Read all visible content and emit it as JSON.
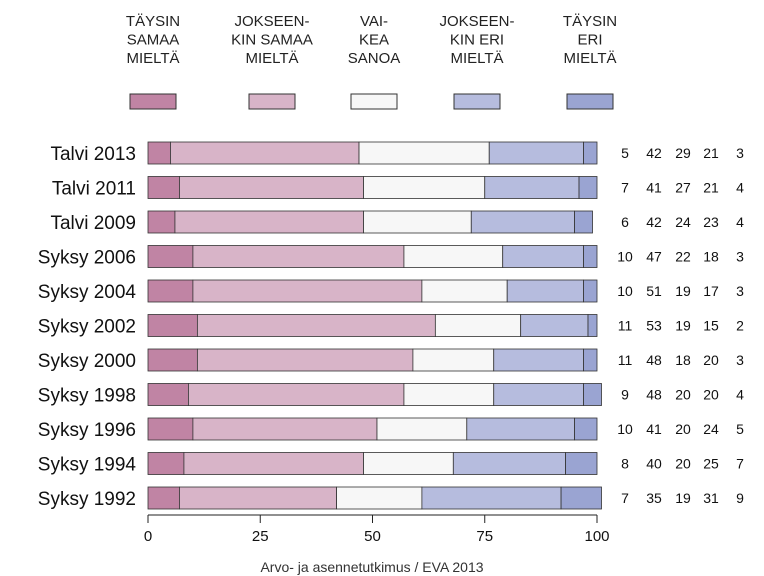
{
  "chart_data": {
    "type": "bar",
    "orientation": "horizontal",
    "stacked": true,
    "categories": [
      "Talvi 2013",
      "Talvi 2011",
      "Talvi 2009",
      "Syksy 2006",
      "Syksy 2004",
      "Syksy 2002",
      "Syksy 2000",
      "Syksy 1998",
      "Syksy 1996",
      "Syksy 1994",
      "Syksy 1992"
    ],
    "series": [
      {
        "name_lines": [
          "TÄYSIN",
          "SAMAA",
          "MIELTÄ"
        ],
        "color": "#c084a4",
        "values": [
          5,
          7,
          6,
          10,
          10,
          11,
          11,
          9,
          10,
          8,
          7
        ]
      },
      {
        "name_lines": [
          "JOKSEEN-",
          "KIN SAMAA",
          "MIELTÄ"
        ],
        "color": "#d8b4c8",
        "values": [
          42,
          41,
          42,
          47,
          51,
          53,
          48,
          48,
          41,
          40,
          35
        ]
      },
      {
        "name_lines": [
          "VAI-",
          "KEA",
          "SANOA"
        ],
        "color": "#f7f7f7",
        "values": [
          29,
          27,
          24,
          22,
          19,
          19,
          18,
          20,
          20,
          20,
          19
        ]
      },
      {
        "name_lines": [
          "JOKSEEN-",
          "KIN ERI",
          "MIELTÄ"
        ],
        "color": "#b6bcde",
        "values": [
          21,
          21,
          23,
          18,
          17,
          15,
          20,
          20,
          24,
          25,
          31
        ]
      },
      {
        "name_lines": [
          "TÄYSIN",
          "ERI",
          "MIELTÄ"
        ],
        "color": "#9aa4d2",
        "values": [
          3,
          4,
          4,
          3,
          3,
          2,
          3,
          4,
          5,
          7,
          9
        ]
      }
    ],
    "xlim": [
      0,
      100
    ],
    "xticks": [
      "0",
      "25",
      "50",
      "75",
      "100"
    ],
    "legend_position": "top",
    "grid": false,
    "source": "Arvo- ja asennetutkimus / EVA 2013"
  }
}
